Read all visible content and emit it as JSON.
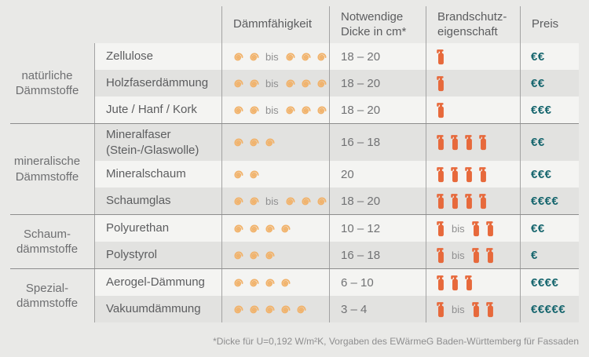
{
  "table": {
    "headers": {
      "daemmfaehigkeit": "Dämmfähigkeit",
      "dicke": "Notwendige Dicke in cm*",
      "brandschutz": "Brandschutz-eigenschaft",
      "preis": "Preis"
    },
    "bis_label": "bis",
    "colors": {
      "snail": "#F1B26A",
      "extinguisher": "#E7693B",
      "euro": "#17666E"
    },
    "groups": [
      {
        "category": "natürliche\nDämmstoffe",
        "rows": [
          {
            "material": "Zellulose",
            "insulation": {
              "count": 2,
              "count_max": 3
            },
            "thickness": "18 – 20",
            "fire": {
              "count": 1
            },
            "price": "€€"
          },
          {
            "material": "Holzfaserdämmung",
            "insulation": {
              "count": 2,
              "count_max": 3
            },
            "thickness": "18 – 20",
            "fire": {
              "count": 1
            },
            "price": "€€"
          },
          {
            "material": "Jute / Hanf / Kork",
            "insulation": {
              "count": 2,
              "count_max": 3
            },
            "thickness": "18 – 20",
            "fire": {
              "count": 1
            },
            "price": "€€€"
          }
        ]
      },
      {
        "category": "mineralische\nDämmstoffe",
        "rows": [
          {
            "material": "Mineralfaser\n(Stein-/Glaswolle)",
            "insulation": {
              "count": 3
            },
            "thickness": "16 – 18",
            "fire": {
              "count": 4
            },
            "price": "€€"
          },
          {
            "material": "Mineralschaum",
            "insulation": {
              "count": 2
            },
            "thickness": "20",
            "fire": {
              "count": 4
            },
            "price": "€€€"
          },
          {
            "material": "Schaumglas",
            "insulation": {
              "count": 2,
              "count_max": 3
            },
            "thickness": "18 – 20",
            "fire": {
              "count": 4
            },
            "price": "€€€€"
          }
        ]
      },
      {
        "category": "Schaum-\ndämmstoffe",
        "rows": [
          {
            "material": "Polyurethan",
            "insulation": {
              "count": 4
            },
            "thickness": "10 – 12",
            "fire": {
              "count": 1,
              "count_max": 2
            },
            "price": "€€"
          },
          {
            "material": "Polystyrol",
            "insulation": {
              "count": 3
            },
            "thickness": "16 – 18",
            "fire": {
              "count": 1,
              "count_max": 2
            },
            "price": "€"
          }
        ]
      },
      {
        "category": "Spezial-\ndämmstoffe",
        "rows": [
          {
            "material": "Aerogel-Dämmung",
            "insulation": {
              "count": 4
            },
            "thickness": "6 – 10",
            "fire": {
              "count": 3
            },
            "price": "€€€€"
          },
          {
            "material": "Vakuumdämmung",
            "insulation": {
              "count": 5
            },
            "thickness": "3 – 4",
            "fire": {
              "count": 1,
              "count_max": 2
            },
            "price": "€€€€€"
          }
        ]
      }
    ]
  },
  "footnote": "*Dicke für U=0,192 W/m²K, Vorgaben des EWärmeG Baden-Württemberg für Fassaden",
  "chart_data": {
    "type": "table",
    "columns": [
      "",
      "",
      "Dämmfähigkeit",
      "Notwendige Dicke in cm*",
      "Brandschutz-eigenschaft",
      "Preis"
    ],
    "rows": [
      [
        "natürliche Dämmstoffe",
        "Zellulose",
        "2 bis 3",
        "18 – 20",
        "1",
        "€€"
      ],
      [
        "natürliche Dämmstoffe",
        "Holzfaserdämmung",
        "2 bis 3",
        "18 – 20",
        "1",
        "€€"
      ],
      [
        "natürliche Dämmstoffe",
        "Jute / Hanf / Kork",
        "2 bis 3",
        "18 – 20",
        "1",
        "€€€"
      ],
      [
        "mineralische Dämmstoffe",
        "Mineralfaser (Stein-/Glaswolle)",
        "3",
        "16 – 18",
        "4",
        "€€"
      ],
      [
        "mineralische Dämmstoffe",
        "Mineralschaum",
        "2",
        "20",
        "4",
        "€€€"
      ],
      [
        "mineralische Dämmstoffe",
        "Schaumglas",
        "2 bis 3",
        "18 – 20",
        "4",
        "€€€€"
      ],
      [
        "Schaum-dämmstoffe",
        "Polyurethan",
        "4",
        "10 – 12",
        "1 bis 2",
        "€€"
      ],
      [
        "Schaum-dämmstoffe",
        "Polystyrol",
        "3",
        "16 – 18",
        "1 bis 2",
        "€"
      ],
      [
        "Spezial-dämmstoffe",
        "Aerogel-Dämmung",
        "4",
        "6 – 10",
        "3",
        "€€€€"
      ],
      [
        "Spezial-dämmstoffe",
        "Vakuumdämmung",
        "5",
        "3 – 4",
        "1 bis 2",
        "€€€€€"
      ]
    ],
    "title": "",
    "legend": "Dämmfähigkeit in Schnecken-Symbolen, Brandschutz in Feuerlöscher-Symbolen, Preis in €-Symbolen"
  }
}
